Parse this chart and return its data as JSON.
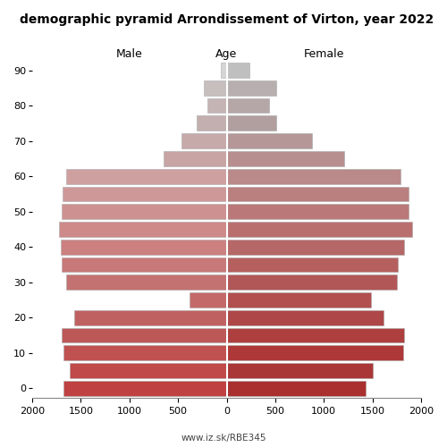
{
  "title": "demographic pyramid Arrondissement of Virton, year 2022",
  "age_groups": [
    90,
    85,
    80,
    75,
    70,
    65,
    60,
    55,
    50,
    45,
    40,
    35,
    30,
    25,
    20,
    15,
    10,
    5,
    0
  ],
  "male": [
    60,
    230,
    200,
    310,
    460,
    650,
    1650,
    1690,
    1700,
    1725,
    1710,
    1695,
    1655,
    385,
    1570,
    1695,
    1675,
    1615,
    1675
  ],
  "female": [
    235,
    515,
    435,
    510,
    880,
    1210,
    1790,
    1870,
    1870,
    1905,
    1830,
    1760,
    1750,
    1490,
    1610,
    1830,
    1820,
    1500,
    1430
  ],
  "male_colors": [
    "#d5d5d5",
    "#c7bebe",
    "#c4b4b4",
    "#c3afaf",
    "#c6a9a9",
    "#c8a4a4",
    "#cfa0a0",
    "#cf9898",
    "#ce9191",
    "#ce8989",
    "#cc8080",
    "#c87878",
    "#c47171",
    "#c46969",
    "#c06161",
    "#bc5858",
    "#c05151",
    "#c04949",
    "#bf4141"
  ],
  "female_colors": [
    "#bfbfbf",
    "#b7afaf",
    "#b5a7a7",
    "#b19f9f",
    "#b59797",
    "#b88f8f",
    "#ba8989",
    "#ba7f7f",
    "#ba7878",
    "#ba6f6f",
    "#b66767",
    "#b65f5f",
    "#b25757",
    "#b24f4f",
    "#ae4747",
    "#ae3f3f",
    "#ae3737",
    "#aa3737",
    "#aa2f2f"
  ],
  "male_label": "Male",
  "female_label": "Female",
  "age_label": "Age",
  "xlim": 2000,
  "bar_height": 0.85,
  "watermark": "www.iz.sk/RBE345",
  "figsize": [
    5.0,
    5.0
  ],
  "dpi": 100,
  "title_fontsize": 10,
  "label_fontsize": 9,
  "tick_fontsize": 8
}
